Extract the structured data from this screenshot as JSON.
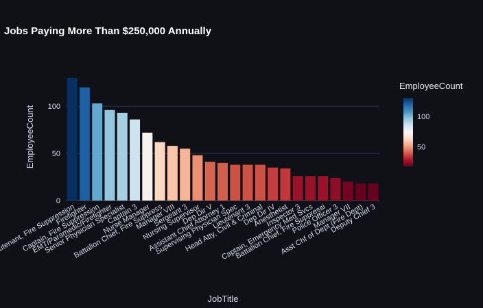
{
  "chart_data": {
    "type": "bar",
    "title": "Jobs Paying More Than $250,000 Annually",
    "xlabel": "JobTitle",
    "ylabel": "EmployeeCount",
    "categories": [
      "Lieutenant, Fire Suppression",
      "Firefighter",
      "Captain, Fire Suppression",
      "EMT/Paramedic/Firefighter",
      "Senior Physician Specialist",
      "Captain 3",
      "Nurse Manager",
      "Battalion Chief, Fire Suppress",
      "Manager VIII",
      "Sergeant 3",
      "Nursing Supervisor",
      "Dep Dir V",
      "Assistant Chief Attorney 1",
      "Supervising Physician Spec",
      "Lieutenant 3",
      "Head Atty, Civil & Criminal",
      "Dep Dir IV",
      "Anesthetist",
      "Inspector 3",
      "Captain, Emergency Med Svcs",
      "Battalion Chief, Fire Suppressi",
      "Police Officer 3",
      "Manager VII",
      "Asst Chf of Dept (Fire Dept)",
      "Deputy Chief 3"
    ],
    "values": [
      130,
      120,
      103,
      96,
      93,
      86,
      72,
      62,
      58,
      55,
      48,
      41,
      40,
      38,
      38,
      38,
      35,
      34,
      26,
      26,
      26,
      24,
      20,
      18,
      18
    ],
    "ylim": [
      0,
      135
    ],
    "yticks": [
      0,
      50,
      100
    ],
    "grid": true,
    "colorbar": {
      "title": "EmployeeCount",
      "ticks": [
        50,
        100
      ],
      "cmin": 18,
      "cmax": 130,
      "colorscale": "RdBu"
    }
  }
}
